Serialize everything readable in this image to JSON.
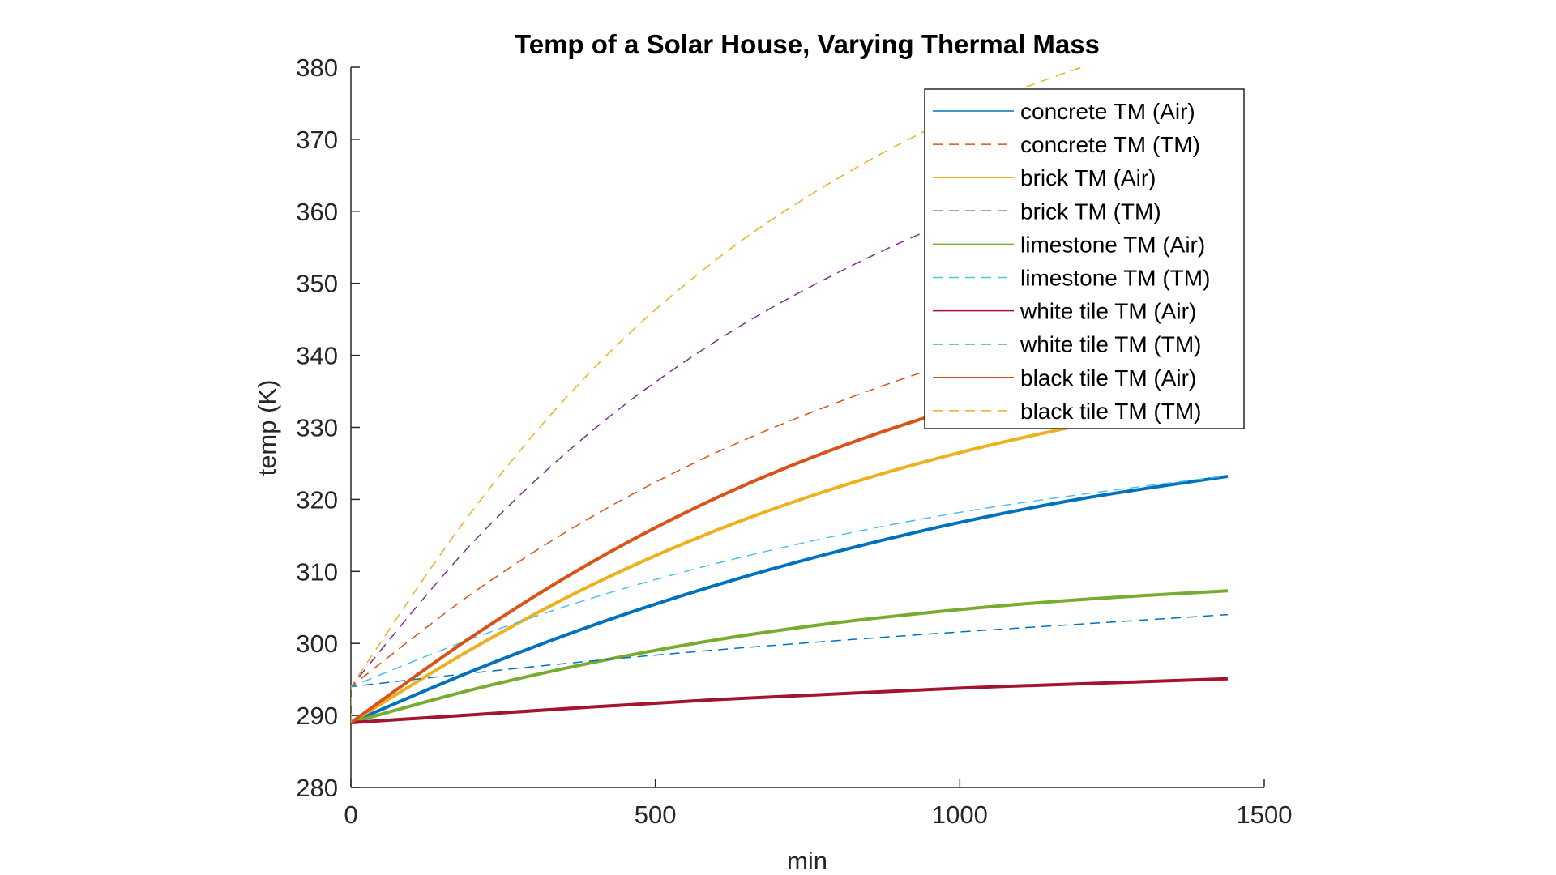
{
  "chart_data": {
    "type": "line",
    "title": "Temp of a Solar House, Varying Thermal Mass",
    "xlabel": "min",
    "ylabel": "temp (K)",
    "xlim": [
      0,
      1500
    ],
    "ylim": [
      280,
      380
    ],
    "xticks": [
      "0",
      "500",
      "1000",
      "1500"
    ],
    "yticks": [
      "280",
      "290",
      "300",
      "310",
      "320",
      "330",
      "340",
      "350",
      "360",
      "370",
      "380"
    ],
    "grid": false,
    "legend_position": "top-right",
    "x": [
      0,
      200,
      400,
      600,
      800,
      1000,
      1200,
      1440
    ],
    "series": [
      {
        "name": "concrete TM (Air)",
        "color": "#0072BD",
        "style": "solid",
        "values": [
          289,
          296.2,
          302.6,
          308.1,
          312.8,
          316.8,
          320.1,
          323.2
        ]
      },
      {
        "name": "concrete TM (TM)",
        "color": "#D95319",
        "style": "dashed",
        "values": [
          294,
          307,
          317.8,
          326.5,
          333.5,
          339.3,
          343.8,
          348
        ]
      },
      {
        "name": "brick TM (Air)",
        "color": "#EDB120",
        "style": "solid",
        "values": [
          289,
          299.3,
          308.3,
          315.7,
          321.7,
          326.5,
          330.3,
          334
        ]
      },
      {
        "name": "brick TM (TM)",
        "color": "#7E2F8E",
        "style": "dashed",
        "values": [
          294,
          314,
          329.8,
          342,
          351.5,
          359.2,
          365.5,
          371
        ]
      },
      {
        "name": "limestone TM (Air)",
        "color": "#77AC30",
        "style": "solid",
        "values": [
          289,
          293.6,
          297.4,
          300.5,
          302.9,
          304.7,
          306.1,
          307.3
        ]
      },
      {
        "name": "limestone TM (TM)",
        "color": "#4DBEEE",
        "style": "dashed",
        "values": [
          294,
          300.7,
          306.4,
          311.1,
          315,
          318.2,
          320.7,
          323.3
        ]
      },
      {
        "name": "white tile TM (Air)",
        "color": "#A2142F",
        "style": "solid",
        "values": [
          289,
          290.1,
          291.2,
          292.2,
          293,
          293.8,
          294.4,
          295.1
        ]
      },
      {
        "name": "white tile TM (TM)",
        "color": "#0072BD",
        "style": "dashed",
        "values": [
          294,
          295.9,
          297.6,
          299.1,
          300.4,
          301.6,
          302.7,
          304
        ]
      },
      {
        "name": "black tile TM (Air)",
        "color": "#D95319",
        "style": "solid",
        "values": [
          289,
          301,
          311.5,
          320.2,
          327.2,
          332.8,
          337.2,
          341.5
        ]
      },
      {
        "name": "black tile TM (TM)",
        "color": "#EDB120",
        "style": "dashed",
        "values": [
          294,
          318.5,
          338.3,
          353.3,
          364.6,
          373.4,
          380,
          386
        ]
      }
    ]
  }
}
